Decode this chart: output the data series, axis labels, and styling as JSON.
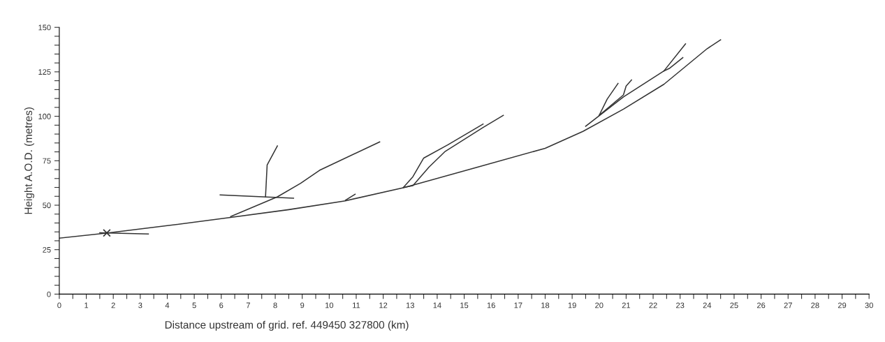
{
  "chart_data": {
    "type": "line",
    "xlabel": "Distance upstream of grid. ref. 449450 327800 (km)",
    "ylabel": "Height A.O.D. (metres)",
    "xlim": [
      0,
      30
    ],
    "ylim": [
      0,
      150
    ],
    "xticks": [
      0,
      {
        "value": 0.5,
        "label": null
      },
      1,
      {
        "value": 1.5,
        "label": null
      },
      2,
      {
        "value": 2.5,
        "label": null
      },
      3,
      {
        "value": 3.5,
        "label": null
      },
      4,
      {
        "value": 4.5,
        "label": null
      },
      5,
      {
        "value": 5.5,
        "label": null
      },
      6,
      {
        "value": 6.5,
        "label": null
      },
      7,
      {
        "value": 7.5,
        "label": null
      },
      8,
      {
        "value": 8.5,
        "label": null
      },
      9,
      {
        "value": 9.5,
        "label": null
      },
      10,
      {
        "value": 10.5,
        "label": null
      },
      11,
      {
        "value": 11.5,
        "label": null
      },
      12,
      {
        "value": 12.5,
        "label": null
      },
      13,
      {
        "value": 13.5,
        "label": null
      },
      14,
      {
        "value": 14.5,
        "label": null
      },
      15,
      {
        "value": 15.5,
        "label": null
      },
      16,
      {
        "value": 16.5,
        "label": null
      },
      17,
      {
        "value": 17.5,
        "label": null
      },
      18,
      {
        "value": 18.5,
        "label": null
      },
      19,
      {
        "value": 19.5,
        "label": null
      },
      20,
      {
        "value": 20.5,
        "label": null
      },
      21,
      {
        "value": 21.5,
        "label": null
      },
      22,
      {
        "value": 22.5,
        "label": null
      },
      23,
      {
        "value": 23.5,
        "label": null
      },
      24,
      {
        "value": 24.5,
        "label": null
      },
      25,
      {
        "value": 25.5,
        "label": null
      },
      26,
      {
        "value": 26.5,
        "label": null
      },
      27,
      {
        "value": 27.5,
        "label": null
      },
      28,
      {
        "value": 28.5,
        "label": null
      },
      29,
      {
        "value": 29.5,
        "label": null
      },
      30
    ],
    "yticks": [
      0,
      {
        "value": 5,
        "label": null
      },
      {
        "value": 10,
        "label": null
      },
      {
        "value": 15,
        "label": null
      },
      {
        "value": 20,
        "label": null
      },
      25,
      {
        "value": 30,
        "label": null
      },
      {
        "value": 35,
        "label": null
      },
      {
        "value": 40,
        "label": null
      },
      {
        "value": 45,
        "label": null
      },
      50,
      {
        "value": 55,
        "label": null
      },
      {
        "value": 60,
        "label": null
      },
      {
        "value": 65,
        "label": null
      },
      {
        "value": 70,
        "label": null
      },
      75,
      {
        "value": 80,
        "label": null
      },
      {
        "value": 85,
        "label": null
      },
      {
        "value": 90,
        "label": null
      },
      {
        "value": 95,
        "label": null
      },
      100,
      {
        "value": 105,
        "label": null
      },
      {
        "value": 110,
        "label": null
      },
      {
        "value": 115,
        "label": null
      },
      {
        "value": 120,
        "label": null
      },
      125,
      {
        "value": 130,
        "label": null
      },
      {
        "value": 135,
        "label": null
      },
      {
        "value": 140,
        "label": null
      },
      {
        "value": 145,
        "label": null
      },
      150
    ],
    "grid": false,
    "legend": false,
    "marker": "none",
    "line_style": "solid",
    "series": [
      {
        "color": "#333333",
        "x": [
          0,
          1.8,
          4,
          6.3,
          8.5,
          10.6,
          12.8,
          15.4,
          18,
          19.4,
          20.9,
          22.4,
          24,
          24.5
        ],
        "values": [
          31.5,
          34.4,
          38.5,
          43,
          47.5,
          52.5,
          60,
          71,
          82,
          91.5,
          104,
          118,
          138,
          143
        ]
      },
      {
        "color": "#333333",
        "x": [
          1.5,
          3.3
        ],
        "values": [
          34.5,
          33.8
        ]
      },
      {
        "color": "#333333",
        "x": [
          5.96,
          8.68
        ],
        "values": [
          55.8,
          53.9
        ]
      },
      {
        "color": "#333333",
        "x": [
          7.64,
          7.7,
          8.08
        ],
        "values": [
          54.7,
          72.6,
          83.3
        ]
      },
      {
        "color": "#333333",
        "x": [
          6.35,
          8.08,
          8.94,
          9.64,
          11.87
        ],
        "values": [
          43.6,
          54.7,
          62.3,
          69.6,
          85.6
        ]
      },
      {
        "color": "#333333",
        "x": [
          10.6,
          10.96
        ],
        "values": [
          52.8,
          56.2
        ]
      },
      {
        "color": "#333333",
        "x": [
          12.75,
          13.1,
          13.5,
          14.4,
          15.7
        ],
        "values": [
          60,
          66,
          76.5,
          84,
          95.6
        ]
      },
      {
        "color": "#333333",
        "x": [
          12.75,
          13.1,
          13.7,
          14.3,
          15.7,
          16.45
        ],
        "values": [
          60,
          61,
          71.5,
          80.3,
          93.7,
          100.5
        ]
      },
      {
        "color": "#333333",
        "x": [
          19.5,
          20.9,
          22.4,
          23.2
        ],
        "values": [
          94.4,
          110.9,
          125.5,
          140.7
        ]
      },
      {
        "color": "#333333",
        "x": [
          22.4,
          22.6,
          23.1
        ],
        "values": [
          125.5,
          126.9,
          133
        ]
      },
      {
        "color": "#333333",
        "x": [
          20.0,
          20.3,
          20.7
        ],
        "values": [
          100.5,
          109.7,
          118.5
        ]
      },
      {
        "color": "#333333",
        "x": [
          20.0,
          20.9,
          21.0,
          21.2
        ],
        "values": [
          100.5,
          112,
          117,
          120.4
        ]
      },
      {
        "type": "scatter",
        "marker": "cross",
        "color": "#333333",
        "x": [
          1.76
        ],
        "values": [
          34.4
        ]
      }
    ]
  }
}
